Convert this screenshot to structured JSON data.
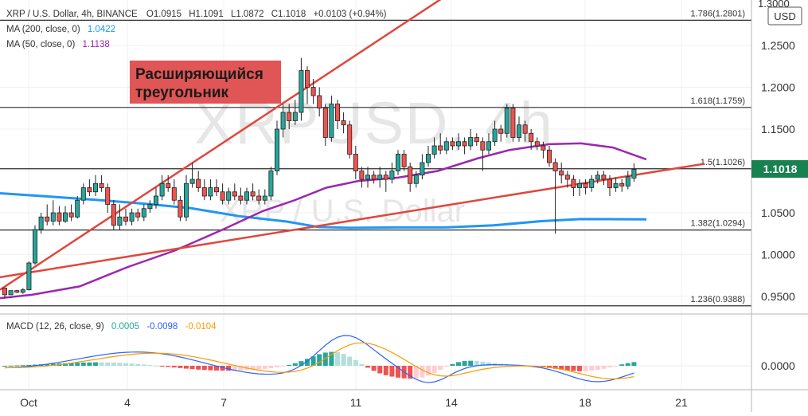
{
  "header": {
    "symbol_line": "XRP / U.S. Dollar, 4h, BINANCE",
    "o_label": "O",
    "o_value": "1.0915",
    "h_label": "H",
    "h_value": "1.1091",
    "l_label": "L",
    "l_value": "1.0872",
    "c_label": "C",
    "c_value": "1.1018",
    "change": "+0.0103 (+0.94%)",
    "ma200_label": "MA (200, close, 0)",
    "ma200_value": "1.0422",
    "ma50_label": "MA (50, close, 0)",
    "ma50_value": "1.1138",
    "macd_label": "MACD (12, 26, close, 9)",
    "macd_v1": "0.0005",
    "macd_v2": "-0.0098",
    "macd_v3": "-0.0104"
  },
  "watermark": {
    "line1": "XRPUSD, 4h",
    "line2": "XRP / U.S. Dollar"
  },
  "annotation": {
    "line1": "Расширяющийся",
    "line2": "треугольник"
  },
  "price_axis": {
    "currency": "USD",
    "top_clipped": "1.3000",
    "last_price": "1.1018"
  },
  "colors": {
    "up": "#26a69a",
    "down": "#ef5350",
    "ma200": "#2196f3",
    "ma50": "#9c27b0",
    "trend": "#e0473c",
    "macd_line": "#2962ff",
    "signal_line": "#ff9800",
    "annotation_bg": "#e05555",
    "price_badge": "#17824f"
  },
  "chart_data": [
    {
      "type": "candlestick",
      "title": "XRP / U.S. Dollar, 4h, BINANCE",
      "x_ticks": [
        "Oct",
        "4",
        "7",
        "11",
        "14",
        "18",
        "21"
      ],
      "y_ticks": [
        "0.9500",
        "1.0000",
        "1.0500",
        "1.1000",
        "1.1500",
        "1.2000",
        "1.2500"
      ],
      "ylim": [
        0.93,
        1.3
      ],
      "fib_levels": [
        {
          "label": "1.786(1.2801)",
          "value": 1.2801
        },
        {
          "label": "1.618(1.1759)",
          "value": 1.1759
        },
        {
          "label": "1.5(1.1026)",
          "value": 1.1026
        },
        {
          "label": "1.382(1.0294)",
          "value": 1.0294
        },
        {
          "label": "1.236(0.9388)",
          "value": 0.9388
        }
      ],
      "series": [
        {
          "name": "MA (200, close, 0)",
          "last": 1.0422
        },
        {
          "name": "MA (50, close, 0)",
          "last": 1.1138
        }
      ],
      "candles": [
        [
          0.96,
          0.952,
          0.955,
          0.948
        ],
        [
          0.952,
          0.957,
          0.949,
          0.948
        ],
        [
          0.957,
          0.955,
          0.958,
          0.954
        ],
        [
          0.955,
          0.958,
          0.96,
          0.953
        ],
        [
          0.958,
          0.99,
          0.992,
          0.957
        ],
        [
          0.99,
          1.03,
          1.035,
          0.988
        ],
        [
          1.03,
          1.045,
          1.05,
          1.025
        ],
        [
          1.045,
          1.04,
          1.06,
          1.035
        ],
        [
          1.04,
          1.05,
          1.065,
          1.035
        ],
        [
          1.05,
          1.04,
          1.058,
          1.035
        ],
        [
          1.04,
          1.05,
          1.058,
          1.038
        ],
        [
          1.05,
          1.045,
          1.06,
          1.04
        ],
        [
          1.045,
          1.065,
          1.07,
          1.043
        ],
        [
          1.065,
          1.08,
          1.085,
          1.06
        ],
        [
          1.08,
          1.075,
          1.09,
          1.07
        ],
        [
          1.075,
          1.085,
          1.095,
          1.07
        ],
        [
          1.085,
          1.08,
          1.095,
          1.075
        ],
        [
          1.08,
          1.06,
          1.085,
          1.05
        ],
        [
          1.06,
          1.035,
          1.065,
          1.03
        ],
        [
          1.035,
          1.045,
          1.06,
          1.03
        ],
        [
          1.045,
          1.04,
          1.055,
          1.035
        ],
        [
          1.04,
          1.05,
          1.055,
          1.035
        ],
        [
          1.05,
          1.045,
          1.055,
          1.04
        ],
        [
          1.045,
          1.055,
          1.06,
          1.04
        ],
        [
          1.055,
          1.06,
          1.065,
          1.05
        ],
        [
          1.06,
          1.07,
          1.08,
          1.055
        ],
        [
          1.07,
          1.085,
          1.095,
          1.065
        ],
        [
          1.085,
          1.08,
          1.095,
          1.075
        ],
        [
          1.08,
          1.065,
          1.09,
          1.06
        ],
        [
          1.065,
          1.045,
          1.07,
          1.04
        ],
        [
          1.045,
          1.085,
          1.095,
          1.04
        ],
        [
          1.085,
          1.09,
          1.11,
          1.08
        ],
        [
          1.09,
          1.08,
          1.1,
          1.075
        ],
        [
          1.08,
          1.07,
          1.09,
          1.065
        ],
        [
          1.07,
          1.08,
          1.09,
          1.065
        ],
        [
          1.08,
          1.075,
          1.09,
          1.07
        ],
        [
          1.075,
          1.065,
          1.085,
          1.06
        ],
        [
          1.065,
          1.075,
          1.08,
          1.06
        ],
        [
          1.075,
          1.07,
          1.085,
          1.065
        ],
        [
          1.07,
          1.065,
          1.08,
          1.06
        ],
        [
          1.065,
          1.075,
          1.08,
          1.06
        ],
        [
          1.075,
          1.07,
          1.085,
          1.065
        ],
        [
          1.07,
          1.065,
          1.078,
          1.06
        ],
        [
          1.065,
          1.07,
          1.078,
          1.06
        ],
        [
          1.07,
          1.1,
          1.105,
          1.065
        ],
        [
          1.1,
          1.15,
          1.16,
          1.095
        ],
        [
          1.15,
          1.17,
          1.18,
          1.14
        ],
        [
          1.17,
          1.16,
          1.18,
          1.15
        ],
        [
          1.16,
          1.17,
          1.185,
          1.155
        ],
        [
          1.17,
          1.22,
          1.235,
          1.16
        ],
        [
          1.22,
          1.2,
          1.225,
          1.18
        ],
        [
          1.2,
          1.19,
          1.21,
          1.18
        ],
        [
          1.19,
          1.175,
          1.2,
          1.165
        ],
        [
          1.175,
          1.14,
          1.18,
          1.13
        ],
        [
          1.14,
          1.18,
          1.19,
          1.135
        ],
        [
          1.18,
          1.16,
          1.185,
          1.15
        ],
        [
          1.16,
          1.155,
          1.17,
          1.145
        ],
        [
          1.155,
          1.12,
          1.16,
          1.115
        ],
        [
          1.12,
          1.1,
          1.13,
          1.09
        ],
        [
          1.1,
          1.09,
          1.105,
          1.08
        ],
        [
          1.09,
          1.095,
          1.105,
          1.08
        ],
        [
          1.095,
          1.09,
          1.1,
          1.085
        ],
        [
          1.09,
          1.095,
          1.105,
          1.08
        ],
        [
          1.095,
          1.09,
          1.1,
          1.075
        ],
        [
          1.09,
          1.1,
          1.11,
          1.085
        ],
        [
          1.1,
          1.12,
          1.125,
          1.095
        ],
        [
          1.12,
          1.105,
          1.125,
          1.1
        ],
        [
          1.105,
          1.085,
          1.11,
          1.075
        ],
        [
          1.085,
          1.095,
          1.1,
          1.08
        ],
        [
          1.095,
          1.11,
          1.12,
          1.09
        ],
        [
          1.11,
          1.12,
          1.13,
          1.105
        ],
        [
          1.12,
          1.13,
          1.14,
          1.115
        ],
        [
          1.13,
          1.125,
          1.145,
          1.12
        ],
        [
          1.125,
          1.135,
          1.14,
          1.12
        ],
        [
          1.135,
          1.13,
          1.14,
          1.125
        ],
        [
          1.13,
          1.135,
          1.145,
          1.125
        ],
        [
          1.135,
          1.13,
          1.14,
          1.12
        ],
        [
          1.13,
          1.14,
          1.15,
          1.125
        ],
        [
          1.14,
          1.135,
          1.145,
          1.13
        ],
        [
          1.135,
          1.125,
          1.14,
          1.1
        ],
        [
          1.125,
          1.135,
          1.145,
          1.12
        ],
        [
          1.135,
          1.15,
          1.16,
          1.13
        ],
        [
          1.15,
          1.145,
          1.155,
          1.135
        ],
        [
          1.145,
          1.175,
          1.18,
          1.14
        ],
        [
          1.175,
          1.14,
          1.18,
          1.135
        ],
        [
          1.14,
          1.155,
          1.165,
          1.135
        ],
        [
          1.155,
          1.145,
          1.16,
          1.135
        ],
        [
          1.145,
          1.135,
          1.15,
          1.125
        ],
        [
          1.135,
          1.13,
          1.14,
          1.125
        ],
        [
          1.13,
          1.125,
          1.135,
          1.115
        ],
        [
          1.125,
          1.11,
          1.13,
          1.105
        ],
        [
          1.11,
          1.1,
          1.115,
          1.025
        ],
        [
          1.1,
          1.095,
          1.11,
          1.085
        ],
        [
          1.095,
          1.09,
          1.1,
          1.08
        ],
        [
          1.09,
          1.08,
          1.095,
          1.07
        ],
        [
          1.08,
          1.085,
          1.09,
          1.07
        ],
        [
          1.085,
          1.08,
          1.09,
          1.072
        ],
        [
          1.08,
          1.09,
          1.095,
          1.075
        ],
        [
          1.09,
          1.095,
          1.1,
          1.085
        ],
        [
          1.095,
          1.09,
          1.1,
          1.083
        ],
        [
          1.09,
          1.08,
          1.095,
          1.07
        ],
        [
          1.08,
          1.085,
          1.092,
          1.075
        ],
        [
          1.085,
          1.082,
          1.09,
          1.075
        ],
        [
          1.082,
          1.093,
          1.1,
          1.078
        ],
        [
          1.0915,
          1.1018,
          1.1091,
          1.0872
        ]
      ]
    },
    {
      "type": "macd",
      "title": "MACD (12, 26, close, 9)",
      "y_ticks": [
        "0.0000"
      ],
      "series": [
        {
          "name": "Histogram",
          "last": 0.0005
        },
        {
          "name": "MACD",
          "last": -0.0098
        },
        {
          "name": "Signal",
          "last": -0.0104
        }
      ]
    }
  ]
}
